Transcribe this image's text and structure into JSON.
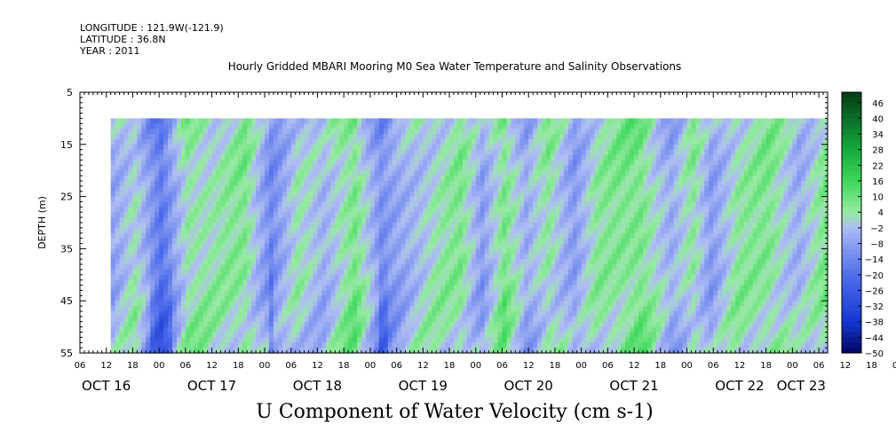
{
  "header": {
    "longitude": "LONGITUDE : 121.9W(-121.9)",
    "latitude": "LATITUDE : 36.8N",
    "year": "YEAR : 2011"
  },
  "chart_data": {
    "type": "heatmap",
    "title": "Hourly Gridded MBARI Mooring M0 Sea Water Temperature and Salinity Observations",
    "variable_title": "U Component of Water Velocity (cm s-1)",
    "ylabel": "DEPTH (m)",
    "ylim": [
      55,
      5
    ],
    "y_ticks": [
      5,
      15,
      25,
      35,
      45,
      55
    ],
    "depth_range_data": [
      10,
      55
    ],
    "x_hour_ticks": [
      "06",
      "12",
      "18",
      "00",
      "06",
      "12",
      "18",
      "00",
      "06",
      "12",
      "18",
      "00",
      "06",
      "12",
      "18",
      "00",
      "06",
      "12",
      "18",
      "00",
      "06",
      "12",
      "18",
      "00",
      "06",
      "12",
      "18",
      "00",
      "06",
      "12",
      "18",
      "00",
      "06"
    ],
    "x_day_labels": [
      "OCT 16",
      "OCT 17",
      "OCT 18",
      "OCT 19",
      "OCT 20",
      "OCT 21",
      "OCT 22",
      "OCT 23"
    ],
    "time_range": [
      "2011-10-16 06:00",
      "2011-10-23 08:00"
    ],
    "data_start": "2011-10-16 13:00",
    "colorbar": {
      "ticks": [
        46,
        40,
        34,
        28,
        22,
        16,
        10,
        4,
        -2,
        -8,
        -14,
        -20,
        -26,
        -32,
        -38,
        -44,
        -50
      ],
      "range": [
        -50,
        50
      ]
    },
    "approx_column_mean_u": [
      {
        "time": "2011-10-16 13:00",
        "u": -6
      },
      {
        "time": "2011-10-16 18:00",
        "u": 2
      },
      {
        "time": "2011-10-17 00:00",
        "u": -18
      },
      {
        "time": "2011-10-17 06:00",
        "u": 4
      },
      {
        "time": "2011-10-17 12:00",
        "u": 3
      },
      {
        "time": "2011-10-17 19:00",
        "u": 6
      },
      {
        "time": "2011-10-18 01:00",
        "u": -12
      },
      {
        "time": "2011-10-18 07:00",
        "u": 2
      },
      {
        "time": "2011-10-18 13:00",
        "u": -4
      },
      {
        "time": "2011-10-18 20:00",
        "u": 8
      },
      {
        "time": "2011-10-19 02:00",
        "u": -12
      },
      {
        "time": "2011-10-19 08:00",
        "u": -4
      },
      {
        "time": "2011-10-19 14:00",
        "u": 2
      },
      {
        "time": "2011-10-19 20:00",
        "u": 6
      },
      {
        "time": "2011-10-20 01:00",
        "u": -8
      },
      {
        "time": "2011-10-20 06:00",
        "u": 8
      },
      {
        "time": "2011-10-20 11:00",
        "u": -6
      },
      {
        "time": "2011-10-20 16:00",
        "u": 4
      },
      {
        "time": "2011-10-20 22:00",
        "u": -8
      },
      {
        "time": "2011-10-21 03:00",
        "u": 4
      },
      {
        "time": "2011-10-21 08:00",
        "u": 6
      },
      {
        "time": "2011-10-21 13:00",
        "u": 8
      },
      {
        "time": "2011-10-21 20:00",
        "u": -6
      },
      {
        "time": "2011-10-22 01:00",
        "u": 4
      },
      {
        "time": "2011-10-22 05:00",
        "u": -8
      },
      {
        "time": "2011-10-22 11:00",
        "u": 4
      },
      {
        "time": "2011-10-22 18:00",
        "u": 6
      },
      {
        "time": "2011-10-23 01:00",
        "u": -4
      },
      {
        "time": "2011-10-23 07:00",
        "u": 6
      }
    ]
  }
}
